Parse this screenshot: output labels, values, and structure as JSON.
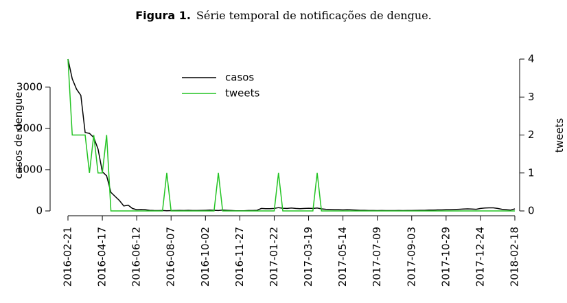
{
  "chart_data": {
    "type": "line",
    "figure_label": "Figura 1.",
    "title": "Série temporal de notificações de dengue.",
    "ylabel": "casos de dengue",
    "y2label": "tweets",
    "x": [
      "2016-02-21",
      "2016-02-28",
      "2016-03-06",
      "2016-03-13",
      "2016-03-20",
      "2016-03-27",
      "2016-04-03",
      "2016-04-10",
      "2016-04-17",
      "2016-04-24",
      "2016-05-01",
      "2016-05-08",
      "2016-05-15",
      "2016-05-22",
      "2016-05-29",
      "2016-06-05",
      "2016-06-12",
      "2016-06-19",
      "2016-06-26",
      "2016-07-03",
      "2016-07-10",
      "2016-07-17",
      "2016-07-24",
      "2016-07-31",
      "2016-08-07",
      "2016-08-14",
      "2016-08-21",
      "2016-08-28",
      "2016-09-04",
      "2016-09-11",
      "2016-09-18",
      "2016-09-25",
      "2016-10-02",
      "2016-10-09",
      "2016-10-16",
      "2016-10-23",
      "2016-10-30",
      "2016-11-06",
      "2016-11-13",
      "2016-11-20",
      "2016-11-27",
      "2016-12-04",
      "2016-12-11",
      "2016-12-18",
      "2016-12-25",
      "2017-01-01",
      "2017-01-08",
      "2017-01-15",
      "2017-01-22",
      "2017-01-29",
      "2017-02-05",
      "2017-02-12",
      "2017-02-19",
      "2017-02-26",
      "2017-03-05",
      "2017-03-12",
      "2017-03-19",
      "2017-03-26",
      "2017-04-02",
      "2017-04-09",
      "2017-04-16",
      "2017-04-23",
      "2017-04-30",
      "2017-05-07",
      "2017-05-14",
      "2017-05-21",
      "2017-05-28",
      "2017-06-04",
      "2017-06-11",
      "2017-06-18",
      "2017-06-25",
      "2017-07-02",
      "2017-07-09",
      "2017-07-16",
      "2017-07-23",
      "2017-07-30",
      "2017-08-06",
      "2017-08-13",
      "2017-08-20",
      "2017-08-27",
      "2017-09-03",
      "2017-09-10",
      "2017-09-17",
      "2017-09-24",
      "2017-10-01",
      "2017-10-08",
      "2017-10-15",
      "2017-10-22",
      "2017-10-29",
      "2017-11-05",
      "2017-11-12",
      "2017-11-19",
      "2017-11-26",
      "2017-12-03",
      "2017-12-10",
      "2017-12-17",
      "2017-12-24",
      "2017-12-31",
      "2018-01-07",
      "2018-01-14",
      "2018-01-21",
      "2018-01-28",
      "2018-02-04",
      "2018-02-11",
      "2018-02-18"
    ],
    "series": [
      {
        "name": "casos",
        "color": "#000000",
        "axis": "y",
        "values": [
          3680,
          3200,
          2950,
          2800,
          1900,
          1880,
          1780,
          1500,
          950,
          850,
          450,
          350,
          250,
          120,
          140,
          60,
          30,
          35,
          30,
          15,
          10,
          8,
          10,
          5,
          8,
          10,
          12,
          10,
          15,
          10,
          10,
          12,
          15,
          20,
          15,
          10,
          20,
          15,
          10,
          5,
          5,
          5,
          10,
          10,
          15,
          60,
          55,
          55,
          60,
          80,
          65,
          60,
          70,
          60,
          55,
          60,
          65,
          60,
          70,
          50,
          40,
          35,
          30,
          30,
          25,
          30,
          25,
          20,
          15,
          15,
          10,
          10,
          8,
          10,
          8,
          8,
          8,
          10,
          8,
          10,
          10,
          12,
          15,
          15,
          20,
          20,
          25,
          25,
          30,
          30,
          35,
          40,
          45,
          50,
          45,
          40,
          60,
          70,
          75,
          75,
          60,
          40,
          30,
          20,
          50
        ]
      },
      {
        "name": "tweets",
        "color": "#22c322",
        "axis": "y2",
        "values": [
          4,
          2,
          2,
          2,
          2,
          1,
          2,
          1,
          1,
          2,
          0,
          0,
          0,
          0,
          0,
          0,
          0,
          0,
          0,
          0,
          0,
          0,
          0,
          1,
          0,
          0,
          0,
          0,
          0,
          0,
          0,
          0,
          0,
          0,
          0,
          1,
          0,
          0,
          0,
          0,
          0,
          0,
          0,
          0,
          0,
          0,
          0,
          0,
          0,
          1,
          0,
          0,
          0,
          0,
          0,
          0,
          0,
          0,
          1,
          0,
          0,
          0,
          0,
          0,
          0,
          0,
          0,
          0,
          0,
          0,
          0,
          0,
          0,
          0,
          0,
          0,
          0,
          0,
          0,
          0,
          0,
          0,
          0,
          0,
          0,
          0,
          0,
          0,
          0,
          0,
          0,
          0,
          0,
          0,
          0,
          0,
          0,
          0,
          0,
          0,
          0,
          0,
          0,
          0,
          0
        ]
      }
    ],
    "xlim": [
      "2016-02-21",
      "2018-02-18"
    ],
    "xticks": [
      "2016-02-21",
      "2016-04-17",
      "2016-06-12",
      "2016-08-07",
      "2016-10-02",
      "2016-11-27",
      "2017-01-22",
      "2017-03-19",
      "2017-05-14",
      "2017-07-09",
      "2017-09-03",
      "2017-10-29",
      "2017-12-24",
      "2018-02-18"
    ],
    "ylim": [
      0,
      3680
    ],
    "yticks": [
      0,
      1000,
      2000,
      3000
    ],
    "y2lim": [
      0,
      4
    ],
    "y2ticks": [
      0,
      1,
      2,
      3,
      4
    ],
    "legend": "top"
  }
}
